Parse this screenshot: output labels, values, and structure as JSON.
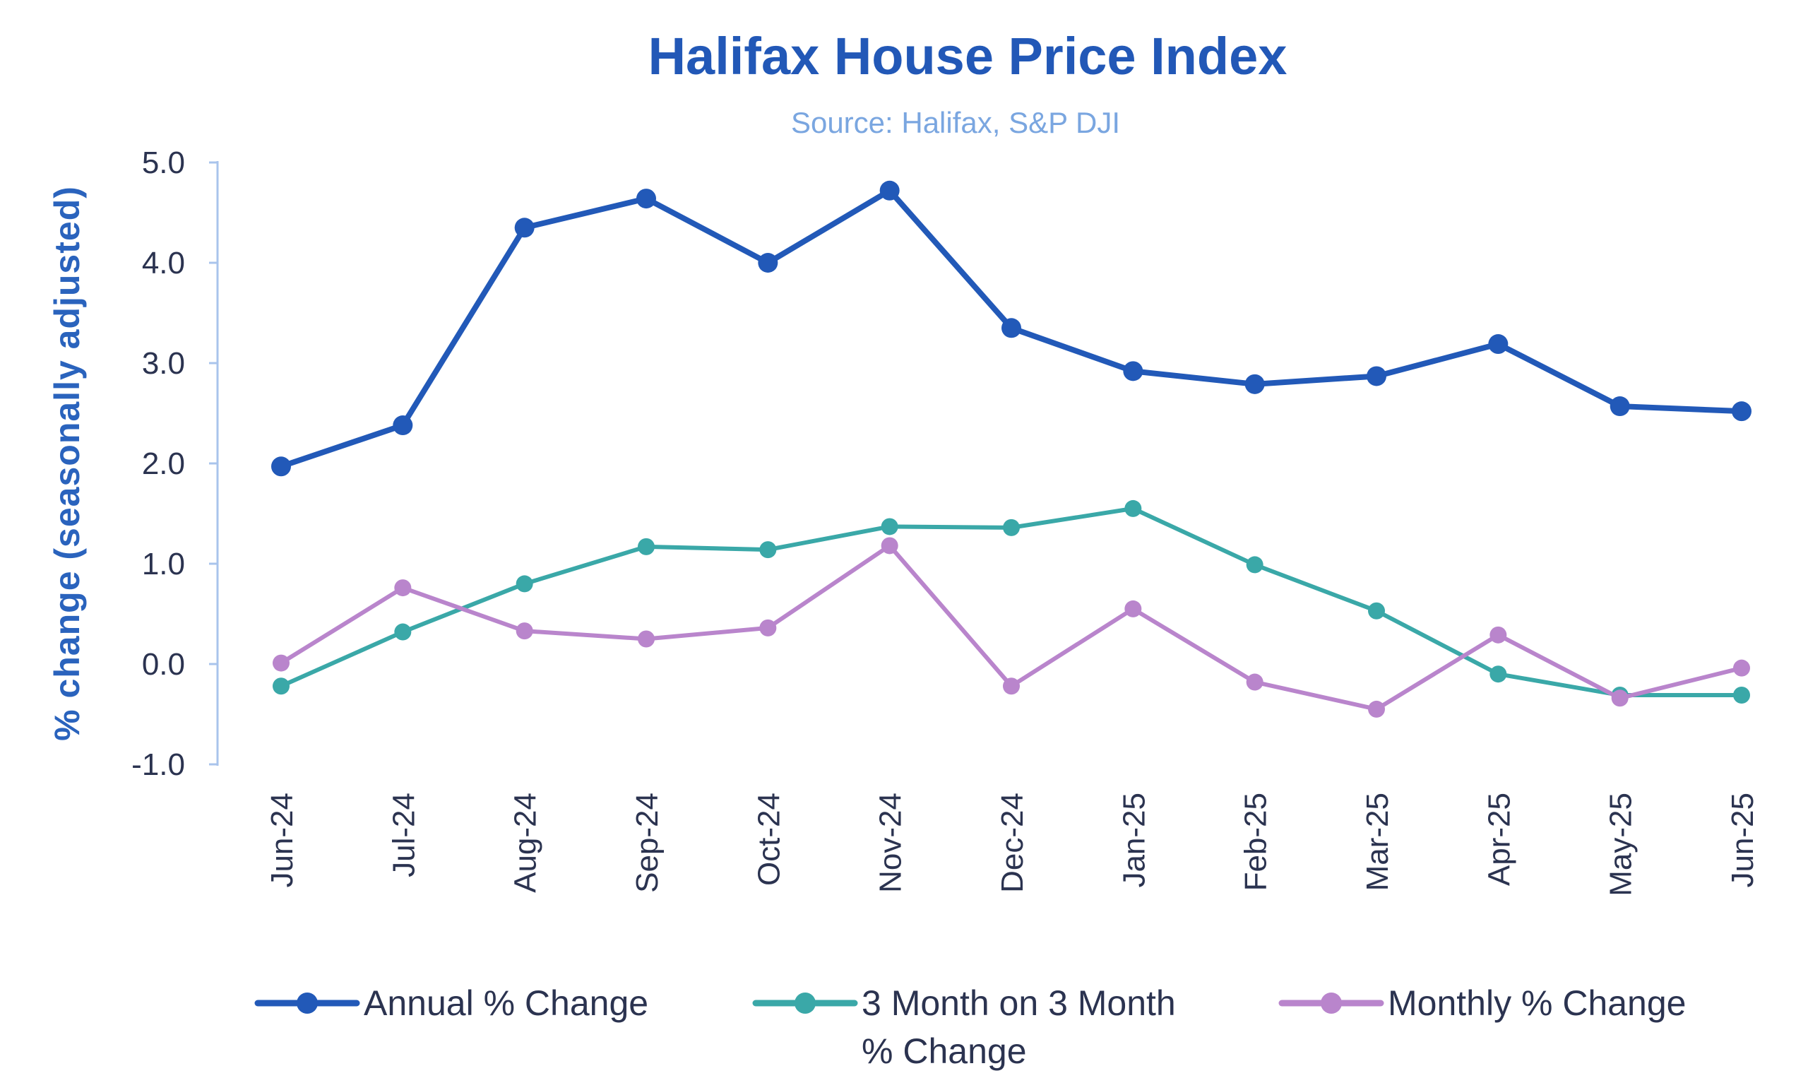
{
  "chart_data": {
    "type": "line",
    "title": "Halifax House Price Index",
    "subtitle": "Source: Halifax, S&P DJI",
    "xlabel": "",
    "ylabel": "%  change (seasonally adjusted)",
    "ylim": [
      -1.0,
      5.0
    ],
    "yticks": [
      "5.0",
      "4.0",
      "3.0",
      "2.0",
      "1.0",
      "0.0",
      "-1.0"
    ],
    "ytick_values": [
      5,
      4,
      3,
      2,
      1,
      0,
      -1
    ],
    "grid": false,
    "legend_position": "bottom",
    "categories": [
      "Jun-24",
      "Jul-24",
      "Aug-24",
      "Sep-24",
      "Oct-24",
      "Nov-24",
      "Dec-24",
      "Jan-25",
      "Feb-25",
      "Mar-25",
      "Apr-25",
      "May-25",
      "Jun-25"
    ],
    "series": [
      {
        "name": "Annual % Change",
        "color": "#2259b8",
        "values": [
          1.97,
          2.38,
          4.35,
          4.64,
          4.0,
          4.72,
          3.35,
          2.92,
          2.79,
          2.87,
          3.19,
          2.57,
          2.52
        ]
      },
      {
        "name": "3 Month on 3 Month % Change",
        "legend_lines": [
          "3 Month on 3 Month",
          "% Change"
        ],
        "color": "#3aa8a8",
        "values": [
          -0.22,
          0.32,
          0.8,
          1.17,
          1.14,
          1.37,
          1.36,
          1.55,
          0.99,
          0.53,
          -0.1,
          -0.31,
          -0.31
        ]
      },
      {
        "name": "Monthly % Change",
        "color": "#b985cc",
        "values": [
          0.01,
          0.76,
          0.33,
          0.25,
          0.36,
          1.18,
          -0.22,
          0.55,
          -0.18,
          -0.45,
          0.29,
          -0.34,
          -0.04
        ]
      }
    ]
  }
}
